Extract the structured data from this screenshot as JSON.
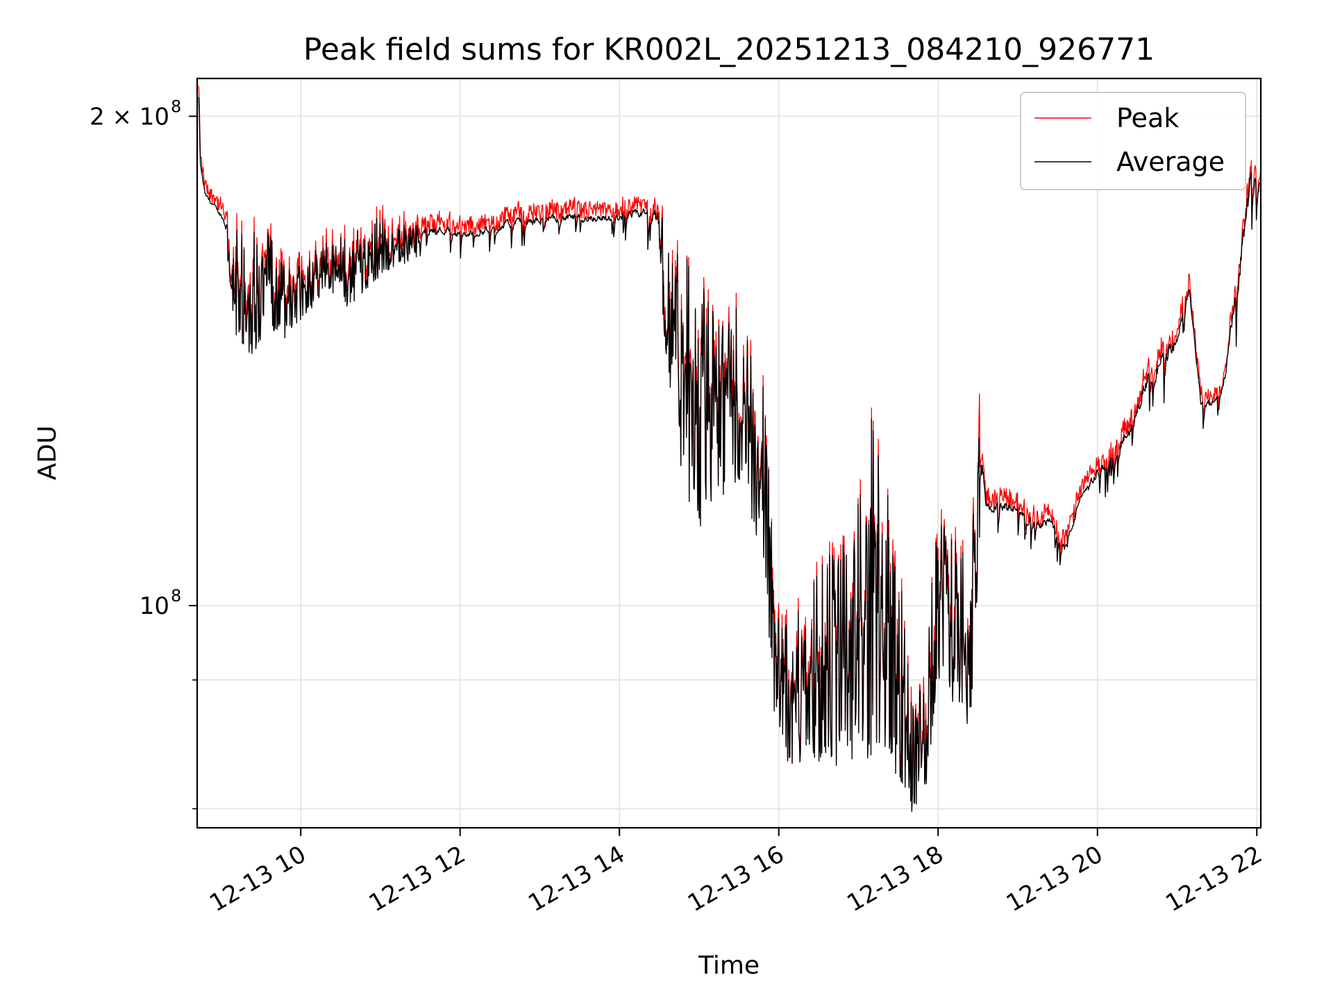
{
  "chart_data": {
    "type": "line",
    "title": "Peak field sums for KR002L_20251213_084210_926771",
    "xlabel": "Time",
    "ylabel": "ADU",
    "yscale": "log",
    "xlim": [
      8.7,
      22.05
    ],
    "ylim": [
      73000000,
      211000000
    ],
    "grid": true,
    "legend_position": "top-right",
    "x_ticks": [
      {
        "value": 10,
        "label": "12-13 10"
      },
      {
        "value": 12,
        "label": "12-13 12"
      },
      {
        "value": 14,
        "label": "12-13 14"
      },
      {
        "value": 16,
        "label": "12-13 16"
      },
      {
        "value": 18,
        "label": "12-13 18"
      },
      {
        "value": 20,
        "label": "12-13 20"
      },
      {
        "value": 22,
        "label": "12-13 22"
      }
    ],
    "y_ticks": [
      {
        "value": 100000000,
        "label": "10",
        "sup": "8"
      },
      {
        "value": 200000000,
        "label": "2 × 10",
        "sup": "8"
      }
    ],
    "y_minor_ticks": [
      75000000,
      90000000
    ],
    "series": [
      {
        "name": "Peak",
        "color": "#ff0000",
        "x": [],
        "values": []
      },
      {
        "name": "Average",
        "color": "#000000",
        "x": [],
        "values": []
      }
    ],
    "peak_spike": {
      "x": 18.52,
      "value": 135000000
    },
    "envelope": {
      "x": [
        8.72,
        8.74,
        8.8,
        9.0,
        9.2,
        9.4,
        9.6,
        9.8,
        10.0,
        10.3,
        10.6,
        10.9,
        11.2,
        11.5,
        11.8,
        12.1,
        12.4,
        12.7,
        13.0,
        13.3,
        13.6,
        13.9,
        14.2,
        14.45,
        14.6,
        14.8,
        15.0,
        15.2,
        15.4,
        15.6,
        15.8,
        15.95,
        16.1,
        16.3,
        16.6,
        16.9,
        17.2,
        17.5,
        17.7,
        17.85,
        18.0,
        18.2,
        18.4,
        18.5,
        18.6,
        18.8,
        19.0,
        19.2,
        19.4,
        19.6,
        19.8,
        20.0,
        20.2,
        20.4,
        20.6,
        20.8,
        21.0,
        21.15,
        21.3,
        21.5,
        21.6,
        21.8,
        21.95,
        22.05
      ],
      "low": [
        185000000,
        182000000,
        175000000,
        170000000,
        145000000,
        142000000,
        148000000,
        146000000,
        150000000,
        155000000,
        152000000,
        158000000,
        162000000,
        163000000,
        164000000,
        163000000,
        165000000,
        166000000,
        167000000,
        167000000,
        167000000,
        167000000,
        167000000,
        164000000,
        140000000,
        118000000,
        110000000,
        115000000,
        118000000,
        116000000,
        105000000,
        85000000,
        79000000,
        80000000,
        80000000,
        79000000,
        80000000,
        78000000,
        74000000,
        77000000,
        90000000,
        86000000,
        84000000,
        100000000,
        112000000,
        108000000,
        110000000,
        107000000,
        108000000,
        103000000,
        113000000,
        115000000,
        118000000,
        122000000,
        126000000,
        127000000,
        138000000,
        150000000,
        128000000,
        130000000,
        133000000,
        145000000,
        168000000,
        170000000
      ],
      "high": [
        211000000,
        188000000,
        180000000,
        175000000,
        172000000,
        173000000,
        170000000,
        162000000,
        162000000,
        168000000,
        170000000,
        174000000,
        172000000,
        172000000,
        172000000,
        171000000,
        172000000,
        174000000,
        174000000,
        175000000,
        175000000,
        175000000,
        176000000,
        178000000,
        170000000,
        165000000,
        160000000,
        152000000,
        155000000,
        148000000,
        140000000,
        103000000,
        98000000,
        100000000,
        108000000,
        110000000,
        134000000,
        106000000,
        98000000,
        90000000,
        119000000,
        115000000,
        105000000,
        140000000,
        116000000,
        117000000,
        116000000,
        114000000,
        114000000,
        110000000,
        118000000,
        122000000,
        126000000,
        130000000,
        140000000,
        145000000,
        148000000,
        158000000,
        134000000,
        135000000,
        140000000,
        170000000,
        190000000,
        186000000
      ]
    },
    "legend": [
      {
        "name": "Peak",
        "color": "#ff0000"
      },
      {
        "name": "Average",
        "color": "#000000"
      }
    ]
  }
}
